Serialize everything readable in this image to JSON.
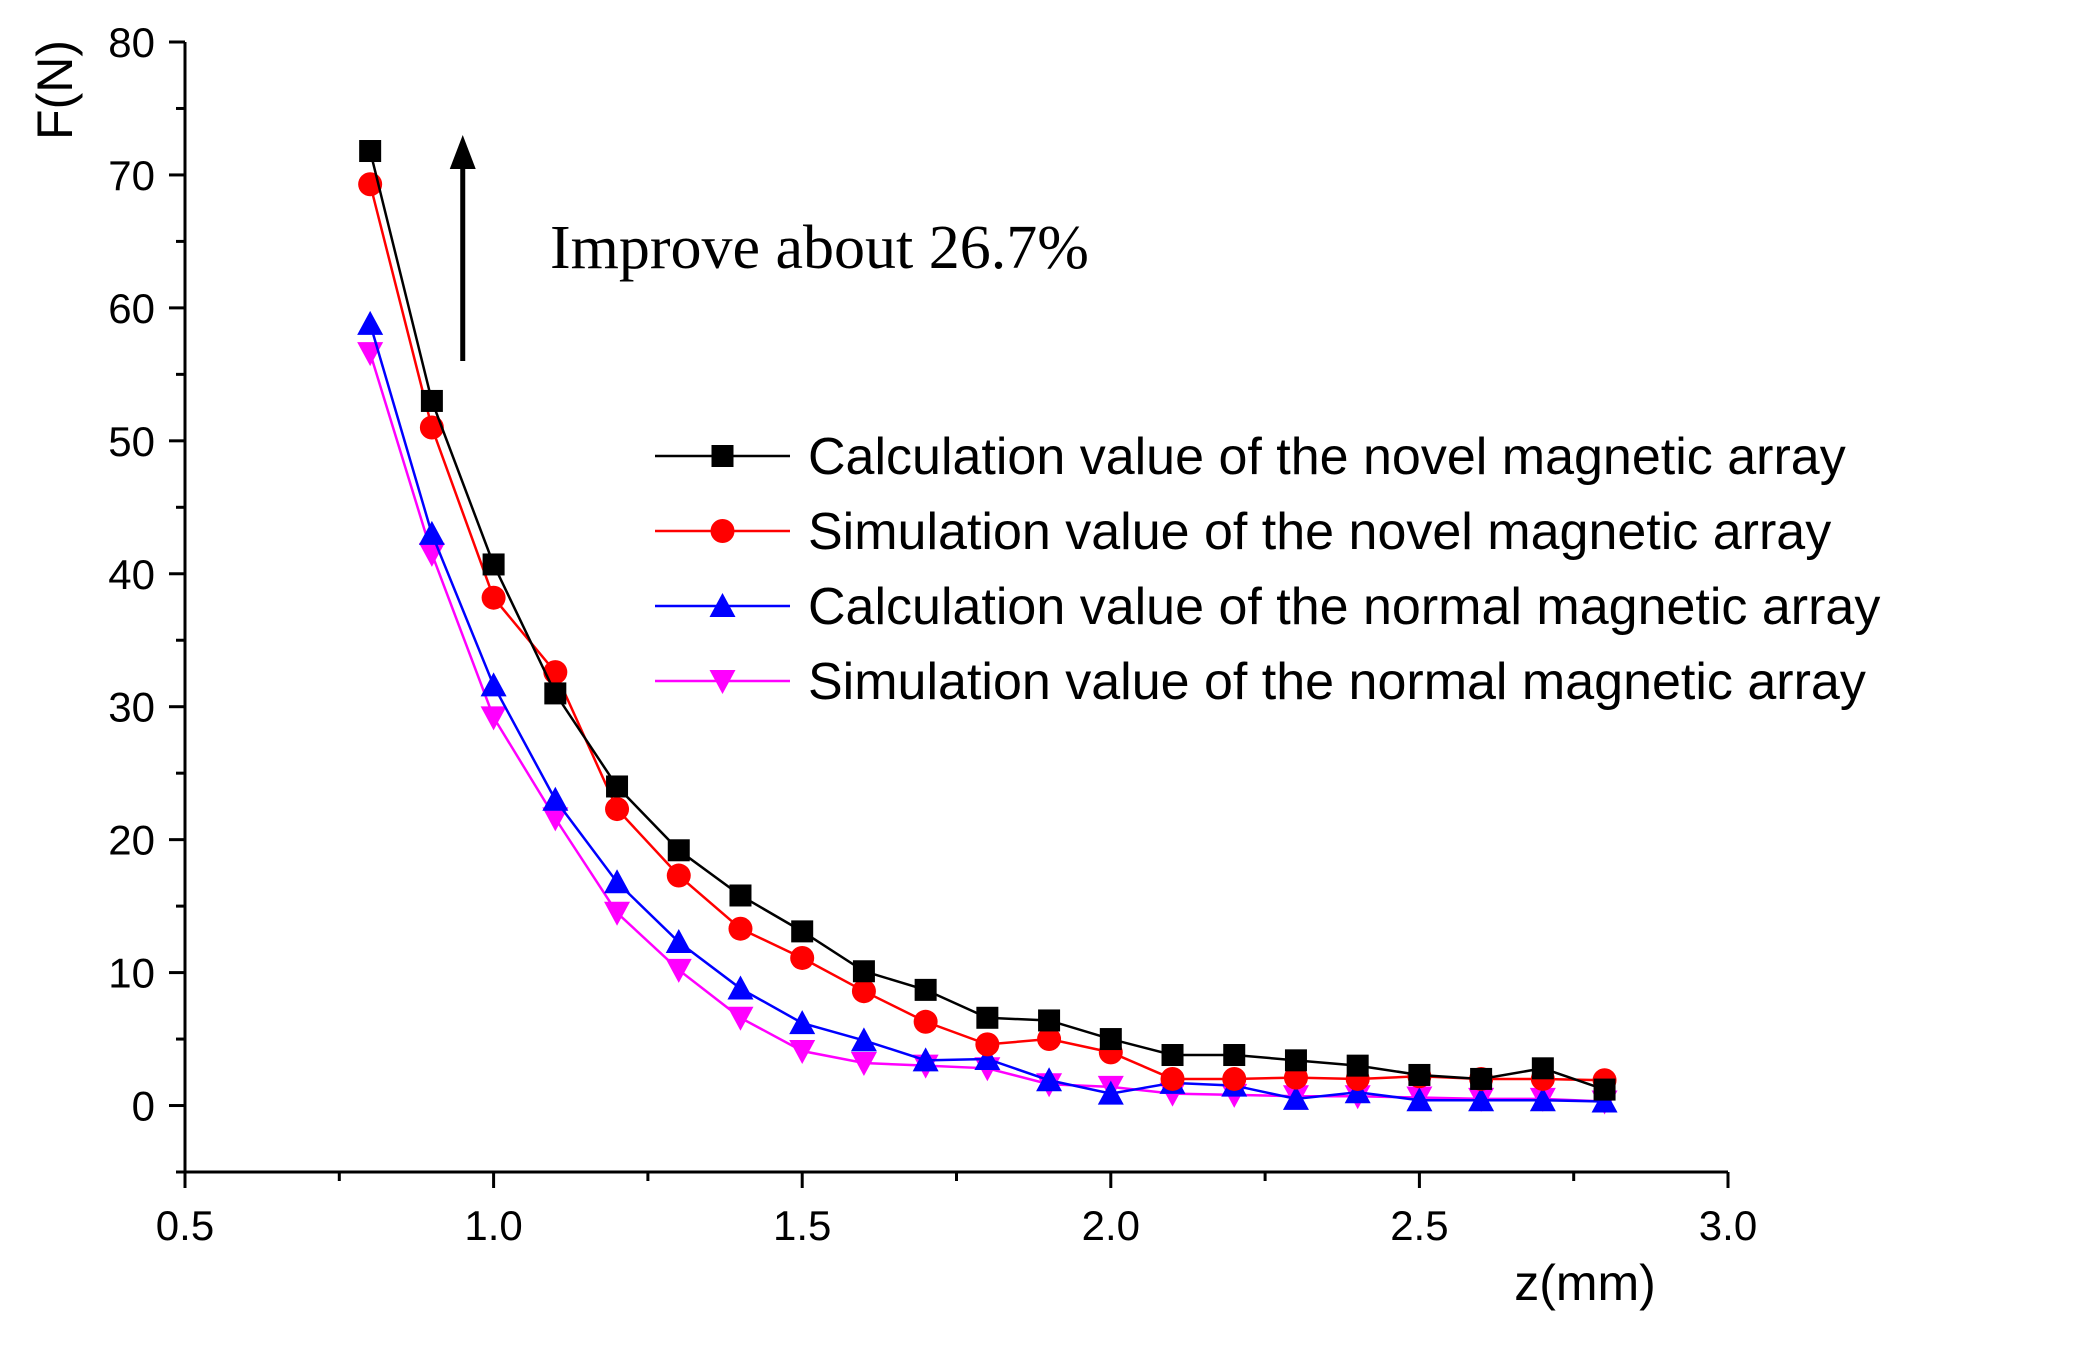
{
  "chart_data": {
    "type": "line",
    "xlabel": "z(mm)",
    "ylabel": "F(N)",
    "xlim": [
      0.5,
      3.0
    ],
    "ylim": [
      -5,
      80
    ],
    "x_ticks": [
      "0.5",
      "1.0",
      "1.5",
      "2.0",
      "2.5",
      "3.0"
    ],
    "y_ticks": [
      "0",
      "10",
      "20",
      "30",
      "40",
      "50",
      "60",
      "70",
      "80"
    ],
    "grid": false,
    "legend_position": "center-right",
    "annotation": {
      "text": "Improve about 26.7%",
      "arrow_from": [
        0.95,
        56
      ],
      "arrow_to": [
        0.95,
        73
      ]
    },
    "x": [
      0.8,
      0.9,
      1.0,
      1.1,
      1.2,
      1.3,
      1.4,
      1.5,
      1.6,
      1.7,
      1.8,
      1.9,
      2.0,
      2.1,
      2.2,
      2.3,
      2.4,
      2.5,
      2.6,
      2.7,
      2.8
    ],
    "series": [
      {
        "name": "Calculation value of the novel magnetic array",
        "color": "#000000",
        "marker": "square",
        "values": [
          71.8,
          53.0,
          40.7,
          31.0,
          24.0,
          19.2,
          15.8,
          13.1,
          10.1,
          8.7,
          6.6,
          6.4,
          5.0,
          3.8,
          3.8,
          3.4,
          3.0,
          2.3,
          2.0,
          2.8,
          1.2
        ]
      },
      {
        "name": "Simulation value of the novel magnetic array",
        "color": "#ff0000",
        "marker": "circle",
        "values": [
          69.3,
          51.0,
          38.2,
          32.6,
          22.3,
          17.3,
          13.3,
          11.1,
          8.6,
          6.3,
          4.6,
          5.0,
          4.0,
          2.0,
          2.0,
          2.1,
          2.0,
          2.2,
          2.0,
          2.0,
          1.9
        ]
      },
      {
        "name": "Calculation value of the normal magnetic array",
        "color": "#0000ff",
        "marker": "triangle-up",
        "values": [
          58.8,
          43.0,
          31.6,
          23.0,
          16.8,
          12.3,
          8.8,
          6.2,
          4.9,
          3.4,
          3.5,
          1.9,
          0.9,
          1.7,
          1.5,
          0.5,
          1.0,
          0.4,
          0.4,
          0.4,
          0.3
        ]
      },
      {
        "name": "Simulation value of the normal magnetic array",
        "color": "#ff00ff",
        "marker": "triangle-down",
        "values": [
          56.6,
          41.5,
          29.2,
          21.6,
          14.5,
          10.2,
          6.6,
          4.1,
          3.2,
          3.0,
          2.8,
          1.6,
          1.4,
          0.9,
          0.8,
          0.7,
          0.7,
          0.6,
          0.5,
          0.5,
          0.3
        ]
      }
    ]
  }
}
